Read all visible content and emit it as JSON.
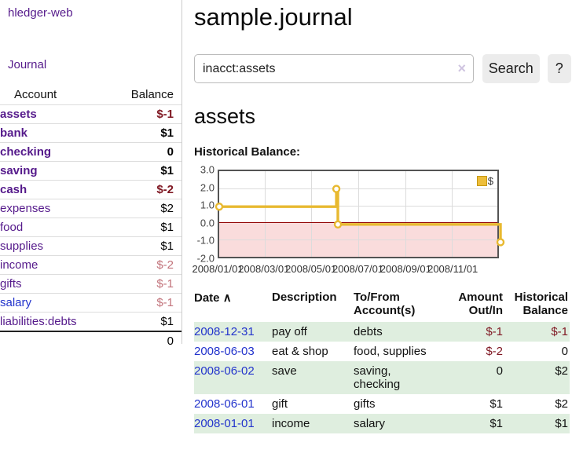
{
  "app": {
    "brand": "hledger-web"
  },
  "sidebar": {
    "journal_link": "Journal",
    "account_header": "Account",
    "balance_header": "Balance",
    "accounts": [
      {
        "name": "assets",
        "balance": "$-1"
      },
      {
        "name": "bank",
        "balance": "$1"
      },
      {
        "name": "checking",
        "balance": "0"
      },
      {
        "name": "saving",
        "balance": "$1"
      },
      {
        "name": "cash",
        "balance": "$-2"
      },
      {
        "name": "expenses",
        "balance": "$2"
      },
      {
        "name": "food",
        "balance": "$1"
      },
      {
        "name": "supplies",
        "balance": "$1"
      },
      {
        "name": "income",
        "balance": "$-2"
      },
      {
        "name": "gifts",
        "balance": "$-1"
      },
      {
        "name": "salary",
        "balance": "$-1"
      },
      {
        "name": "liabilities:debts",
        "balance": "$1"
      }
    ],
    "total": "0"
  },
  "main": {
    "title": "sample.journal",
    "search": {
      "query": "inacct:assets",
      "clear_icon": "×",
      "search_button": "Search",
      "help_button": "?"
    },
    "account_heading": "assets",
    "chart_heading": "Historical Balance:"
  },
  "chart_data": {
    "type": "line",
    "step": true,
    "title": "Historical Balance:",
    "legend": [
      {
        "label": "$",
        "color": "#EDBE3B"
      }
    ],
    "points": [
      {
        "date": "2008-01-01",
        "value": 1
      },
      {
        "date": "2008-06-01",
        "value": 2
      },
      {
        "date": "2008-06-03",
        "value": 0
      },
      {
        "date": "2008-12-31",
        "value": -1
      }
    ],
    "x_range": [
      "2008-01-01",
      "2008-12-31"
    ],
    "x_tick_dates": [
      "2008-01-01",
      "2008-03-01",
      "2008-05-01",
      "2008-07-01",
      "2008-09-01",
      "2008-11-01"
    ],
    "x_tick_labels": [
      "2008/01/01",
      "2008/03/01",
      "2008/05/01",
      "2008/07/01",
      "2008/09/01",
      "2008/11/01"
    ],
    "y_ticks": [
      3.0,
      2.0,
      1.0,
      0.0,
      -1.0,
      -2.0
    ],
    "y_tick_labels": [
      "3.0",
      "2.0",
      "1.0",
      "0.0",
      "-1.0",
      "-2.0"
    ],
    "ylim": [
      -2,
      3
    ],
    "grid": true,
    "legend_position": "top-right",
    "line_color": "#E8B930",
    "negative_fill": "#FADCDC",
    "zero_line_color": "#900000"
  },
  "transactions": {
    "headers": {
      "date": "Date",
      "sort_caret": "∧",
      "description": "Description",
      "accounts": "To/From Account(s)",
      "amount": "Amount Out/In",
      "balance": "Historical Balance"
    },
    "rows": [
      {
        "date": "2008-12-31",
        "description": "pay off",
        "accounts": "debts",
        "amount": "$-1",
        "balance": "$-1"
      },
      {
        "date": "2008-06-03",
        "description": "eat & shop",
        "accounts": "food, supplies",
        "amount": "$-2",
        "balance": "0"
      },
      {
        "date": "2008-06-02",
        "description": "save",
        "accounts": "saving,\nchecking",
        "amount": "0",
        "balance": "$2"
      },
      {
        "date": "2008-06-01",
        "description": "gift",
        "accounts": "gifts",
        "amount": "$1",
        "balance": "$2"
      },
      {
        "date": "2008-01-01",
        "description": "income",
        "accounts": "salary",
        "amount": "$1",
        "balance": "$1"
      }
    ]
  }
}
